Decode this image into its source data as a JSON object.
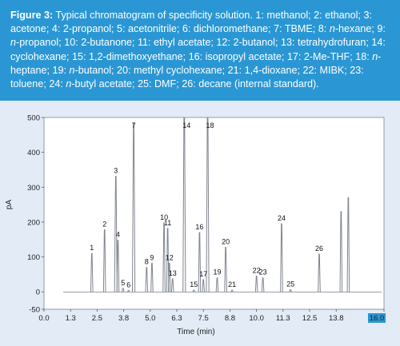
{
  "caption": {
    "label": "Figure 3:",
    "segments": [
      {
        "t": " Typical chromatogram of specificity solution. 1: methanol; 2: ethanol; 3: acetone; 4: 2-propanol; 5: acetonitrile; 6: dichloromethane; 7: TBME; 8: "
      },
      {
        "t": "n",
        "i": true
      },
      {
        "t": "-hexane; 9: "
      },
      {
        "t": "n",
        "i": true
      },
      {
        "t": "-propanol; 10: 2-butanone; 11: ethyl acetate; 12: 2-butanol; 13: tetrahydrofuran; 14: cyclohexane; 15: 1,2-dimethoxyethane; 16: isopropyl acetate; 17: 2-Me-THF; 18: "
      },
      {
        "t": "n",
        "i": true
      },
      {
        "t": "-heptane; 19: "
      },
      {
        "t": "n",
        "i": true
      },
      {
        "t": "-butanol; 20: methyl cyclohexane; 21: 1,4-dioxane; 22: MIBK; 23: toluene; 24: "
      },
      {
        "t": "n",
        "i": true
      },
      {
        "t": "-butyl acetate; 25: DMF; 26: decane (internal standard)."
      }
    ]
  },
  "chart_data": {
    "type": "line",
    "xlabel": "Time (min)",
    "ylabel": "pA",
    "xlim": [
      0,
      16.0
    ],
    "ylim": [
      -50,
      500
    ],
    "x_ticks": [
      "0.0",
      "1.3",
      "2.5",
      "3.8",
      "5.0",
      "6.3",
      "7.5",
      "8.8",
      "10.0",
      "11.3",
      "12.5",
      "13.8",
      "16.0"
    ],
    "x_tick_values": [
      0,
      1.25,
      2.5,
      3.75,
      5.0,
      6.25,
      7.5,
      8.75,
      10.0,
      11.25,
      12.5,
      13.75,
      16.0
    ],
    "y_ticks": [
      -50,
      0,
      100,
      200,
      300,
      400,
      500
    ],
    "baseline": -0.5,
    "peaks": [
      {
        "label": "1",
        "t": 2.25,
        "h": 110
      },
      {
        "label": "2",
        "t": 2.85,
        "h": 178
      },
      {
        "label": "3",
        "t": 3.38,
        "h": 331
      },
      {
        "label": "4",
        "t": 3.48,
        "h": 148
      },
      {
        "label": "5",
        "t": 3.72,
        "h": 10
      },
      {
        "label": "6",
        "t": 3.98,
        "h": 4
      },
      {
        "label": "7",
        "t": 4.22,
        "h": 484
      },
      {
        "label": "8",
        "t": 4.83,
        "h": 70
      },
      {
        "label": "9",
        "t": 5.08,
        "h": 82
      },
      {
        "label": "10",
        "t": 5.65,
        "h": 198
      },
      {
        "label": "11",
        "t": 5.82,
        "h": 182
      },
      {
        "label": "12",
        "t": 5.9,
        "h": 82
      },
      {
        "label": "13",
        "t": 6.05,
        "h": 37
      },
      {
        "label": "14",
        "t": 6.6,
        "h": 540
      },
      {
        "label": "15",
        "t": 7.05,
        "h": 5
      },
      {
        "label": "16",
        "t": 7.32,
        "h": 170
      },
      {
        "label": "17",
        "t": 7.5,
        "h": 35
      },
      {
        "label": "18",
        "t": 7.7,
        "h": 540
      },
      {
        "label": "19",
        "t": 8.15,
        "h": 40
      },
      {
        "label": "20",
        "t": 8.55,
        "h": 128
      },
      {
        "label": "21",
        "t": 8.85,
        "h": 5
      },
      {
        "label": "22",
        "t": 10.0,
        "h": 45
      },
      {
        "label": "23",
        "t": 10.3,
        "h": 40
      },
      {
        "label": "24",
        "t": 11.18,
        "h": 195
      },
      {
        "label": "25",
        "t": 11.6,
        "h": 6
      },
      {
        "label": "26",
        "t": 12.95,
        "h": 108
      },
      {
        "label": "",
        "t": 13.98,
        "h": 230
      },
      {
        "label": "",
        "t": 14.32,
        "h": 270
      }
    ]
  }
}
